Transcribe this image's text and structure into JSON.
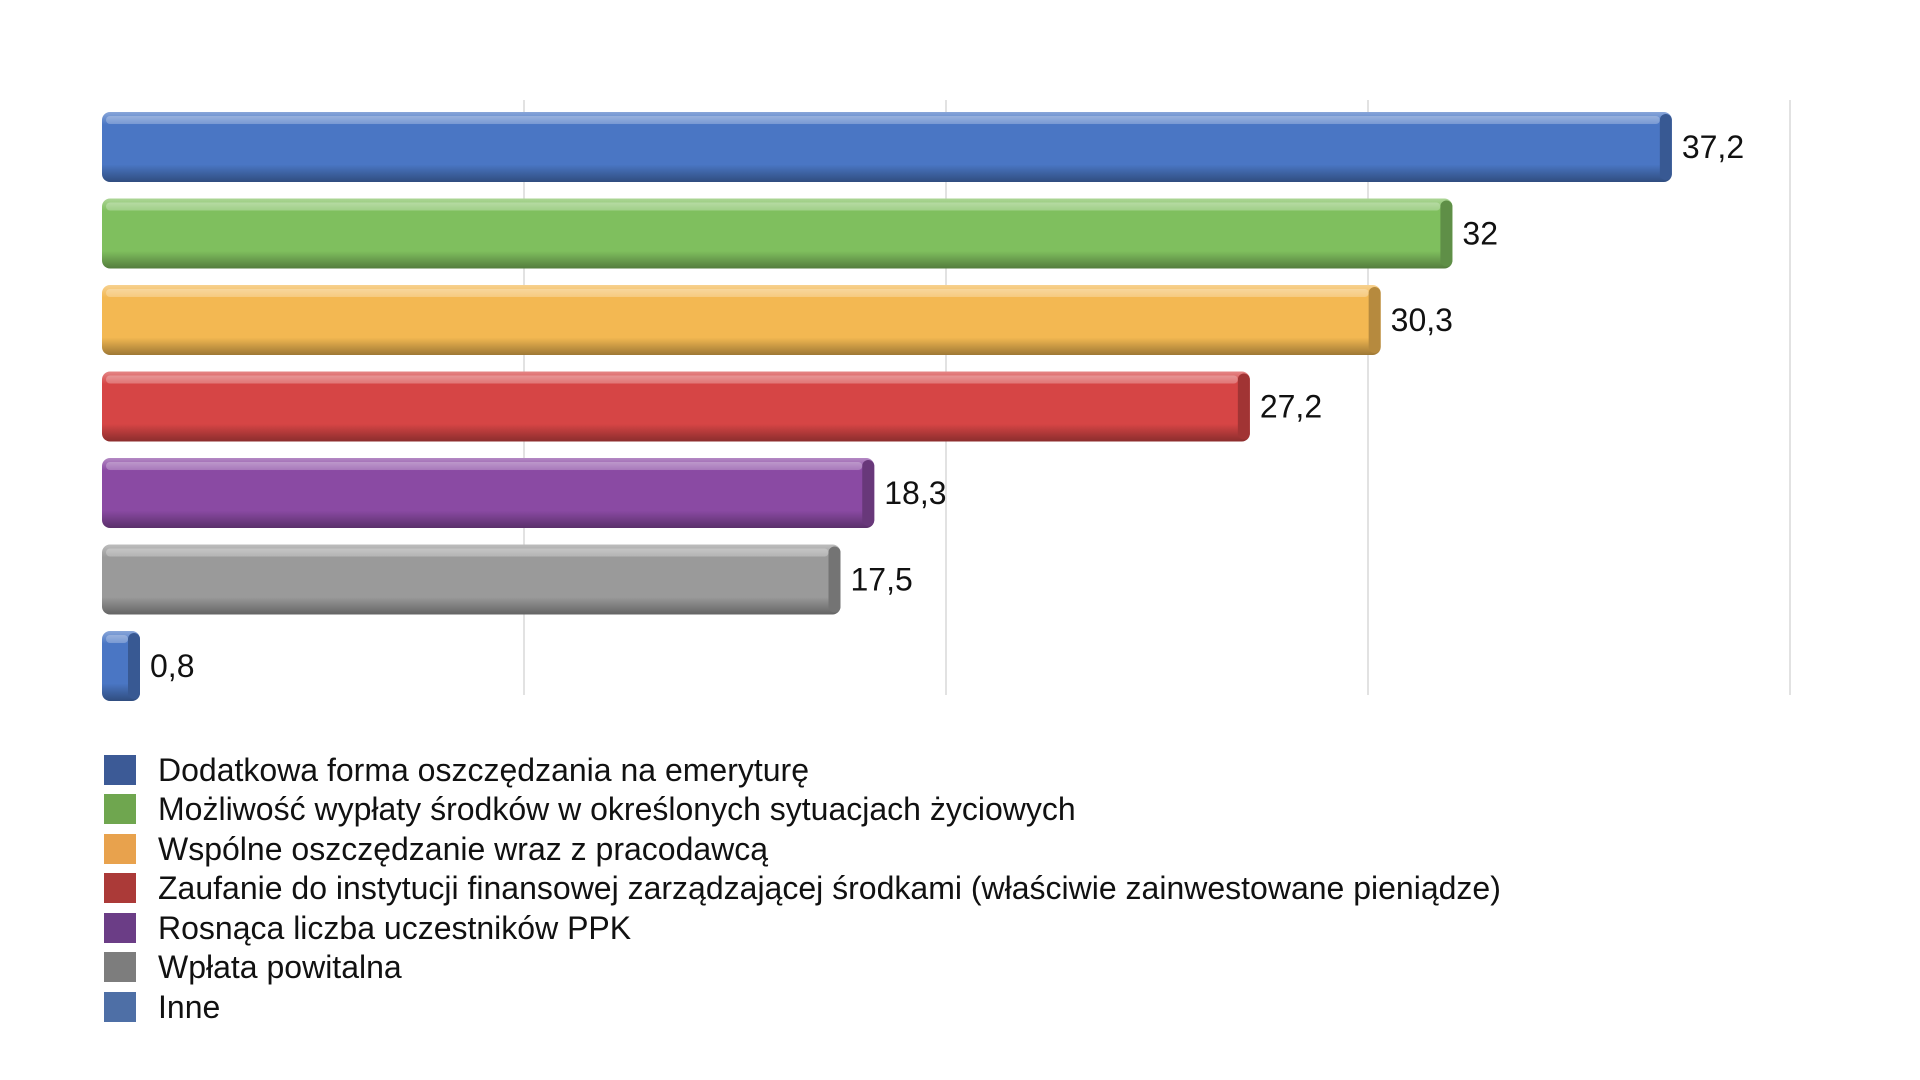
{
  "chart_data": {
    "type": "bar",
    "orientation": "horizontal",
    "style": "3d",
    "categories": [
      "Dodatkowa forma oszczędzania na emeryturę",
      "Możliwość wypłaty środków w określonych sytuacjach życiowych",
      "Wspólne oszczędzanie wraz z pracodawcą",
      "Zaufanie do instytucji finansowej zarządzającej środkami (właściwie zainwestowane pieniądze)",
      "Rosnąca liczba uczestników PPK",
      "Wpłata powitalna",
      "Inne"
    ],
    "values": [
      37.2,
      32,
      30.3,
      27.2,
      18.3,
      17.5,
      0.8
    ],
    "value_labels": [
      "37,2",
      "32",
      "30,3",
      "27,2",
      "18,3",
      "17,5",
      "0,8"
    ],
    "colors": [
      "#4a76c4",
      "#7fbf5e",
      "#f3b852",
      "#d64545",
      "#8a4aa3",
      "#9a9a9a",
      "#4a76c4"
    ],
    "legend_colors": [
      "#3c5a96",
      "#6fa64f",
      "#e8a24d",
      "#ab3a38",
      "#6b3d86",
      "#7d7d7d",
      "#4e6fa6"
    ],
    "xlim": [
      0,
      40
    ],
    "grid": true,
    "legend_position": "bottom"
  }
}
